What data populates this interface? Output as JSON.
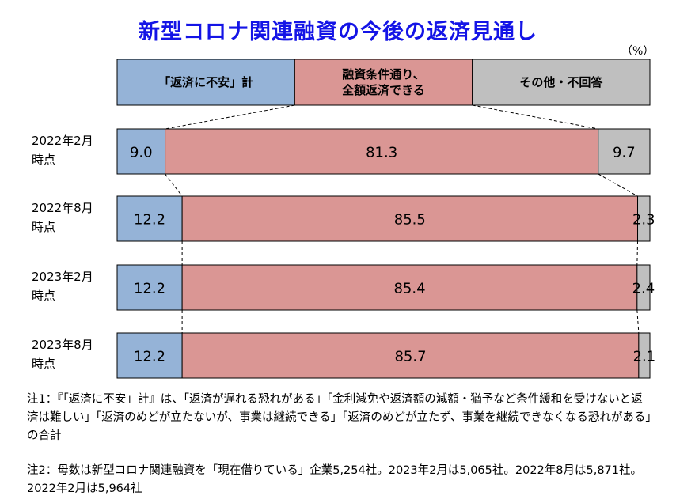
{
  "title": "新型コロナ関連融資の今後の返済見通し",
  "unit_label": "（%）",
  "legend": [
    {
      "label": "「返済に不安」計",
      "color": "#95b3d7"
    },
    {
      "label": "融資条件通り、\n全額返済できる",
      "color": "#da9694"
    },
    {
      "label": "その他・不回答",
      "color": "#bfbfbf"
    }
  ],
  "chart_data": {
    "type": "bar",
    "orientation": "horizontal-stacked-100",
    "categories": [
      "2022年2月\n時点",
      "2022年8月\n時点",
      "2023年2月\n時点",
      "2023年8月\n時点"
    ],
    "series": [
      {
        "name": "「返済に不安」計",
        "color": "#95b3d7",
        "values": [
          9.0,
          12.2,
          12.2,
          12.2
        ]
      },
      {
        "name": "融資条件通り、全額返済できる",
        "color": "#da9694",
        "values": [
          81.3,
          85.5,
          85.4,
          85.7
        ]
      },
      {
        "name": "その他・不回答",
        "color": "#bfbfbf",
        "values": [
          9.7,
          2.3,
          2.4,
          2.1
        ]
      }
    ],
    "value_labels": [
      [
        "9.0",
        "81.3",
        "9.7"
      ],
      [
        "12.2",
        "85.5",
        "2.3"
      ],
      [
        "12.2",
        "85.4",
        "2.4"
      ],
      [
        "12.2",
        "85.7",
        "2.1"
      ]
    ],
    "xlim": [
      0,
      100
    ],
    "series_lines": "dashed"
  },
  "notes": {
    "note1": "注1：『「返済に不安」計』は、「返済が遅れる恐れがある」「金利減免や返済額の減額・猶予など条件緩和を受けないと返済は難しい」「返済のめどが立たないが、事業は継続できる」「返済のめどが立たず、事業を継続できなくなる恐れがある」の合計",
    "note2": "注2：母数は新型コロナ関連融資を「現在借りている」企業5,254社。2023年2月は5,065社。2022年8月は5,871社。2022年2月は5,964社"
  }
}
